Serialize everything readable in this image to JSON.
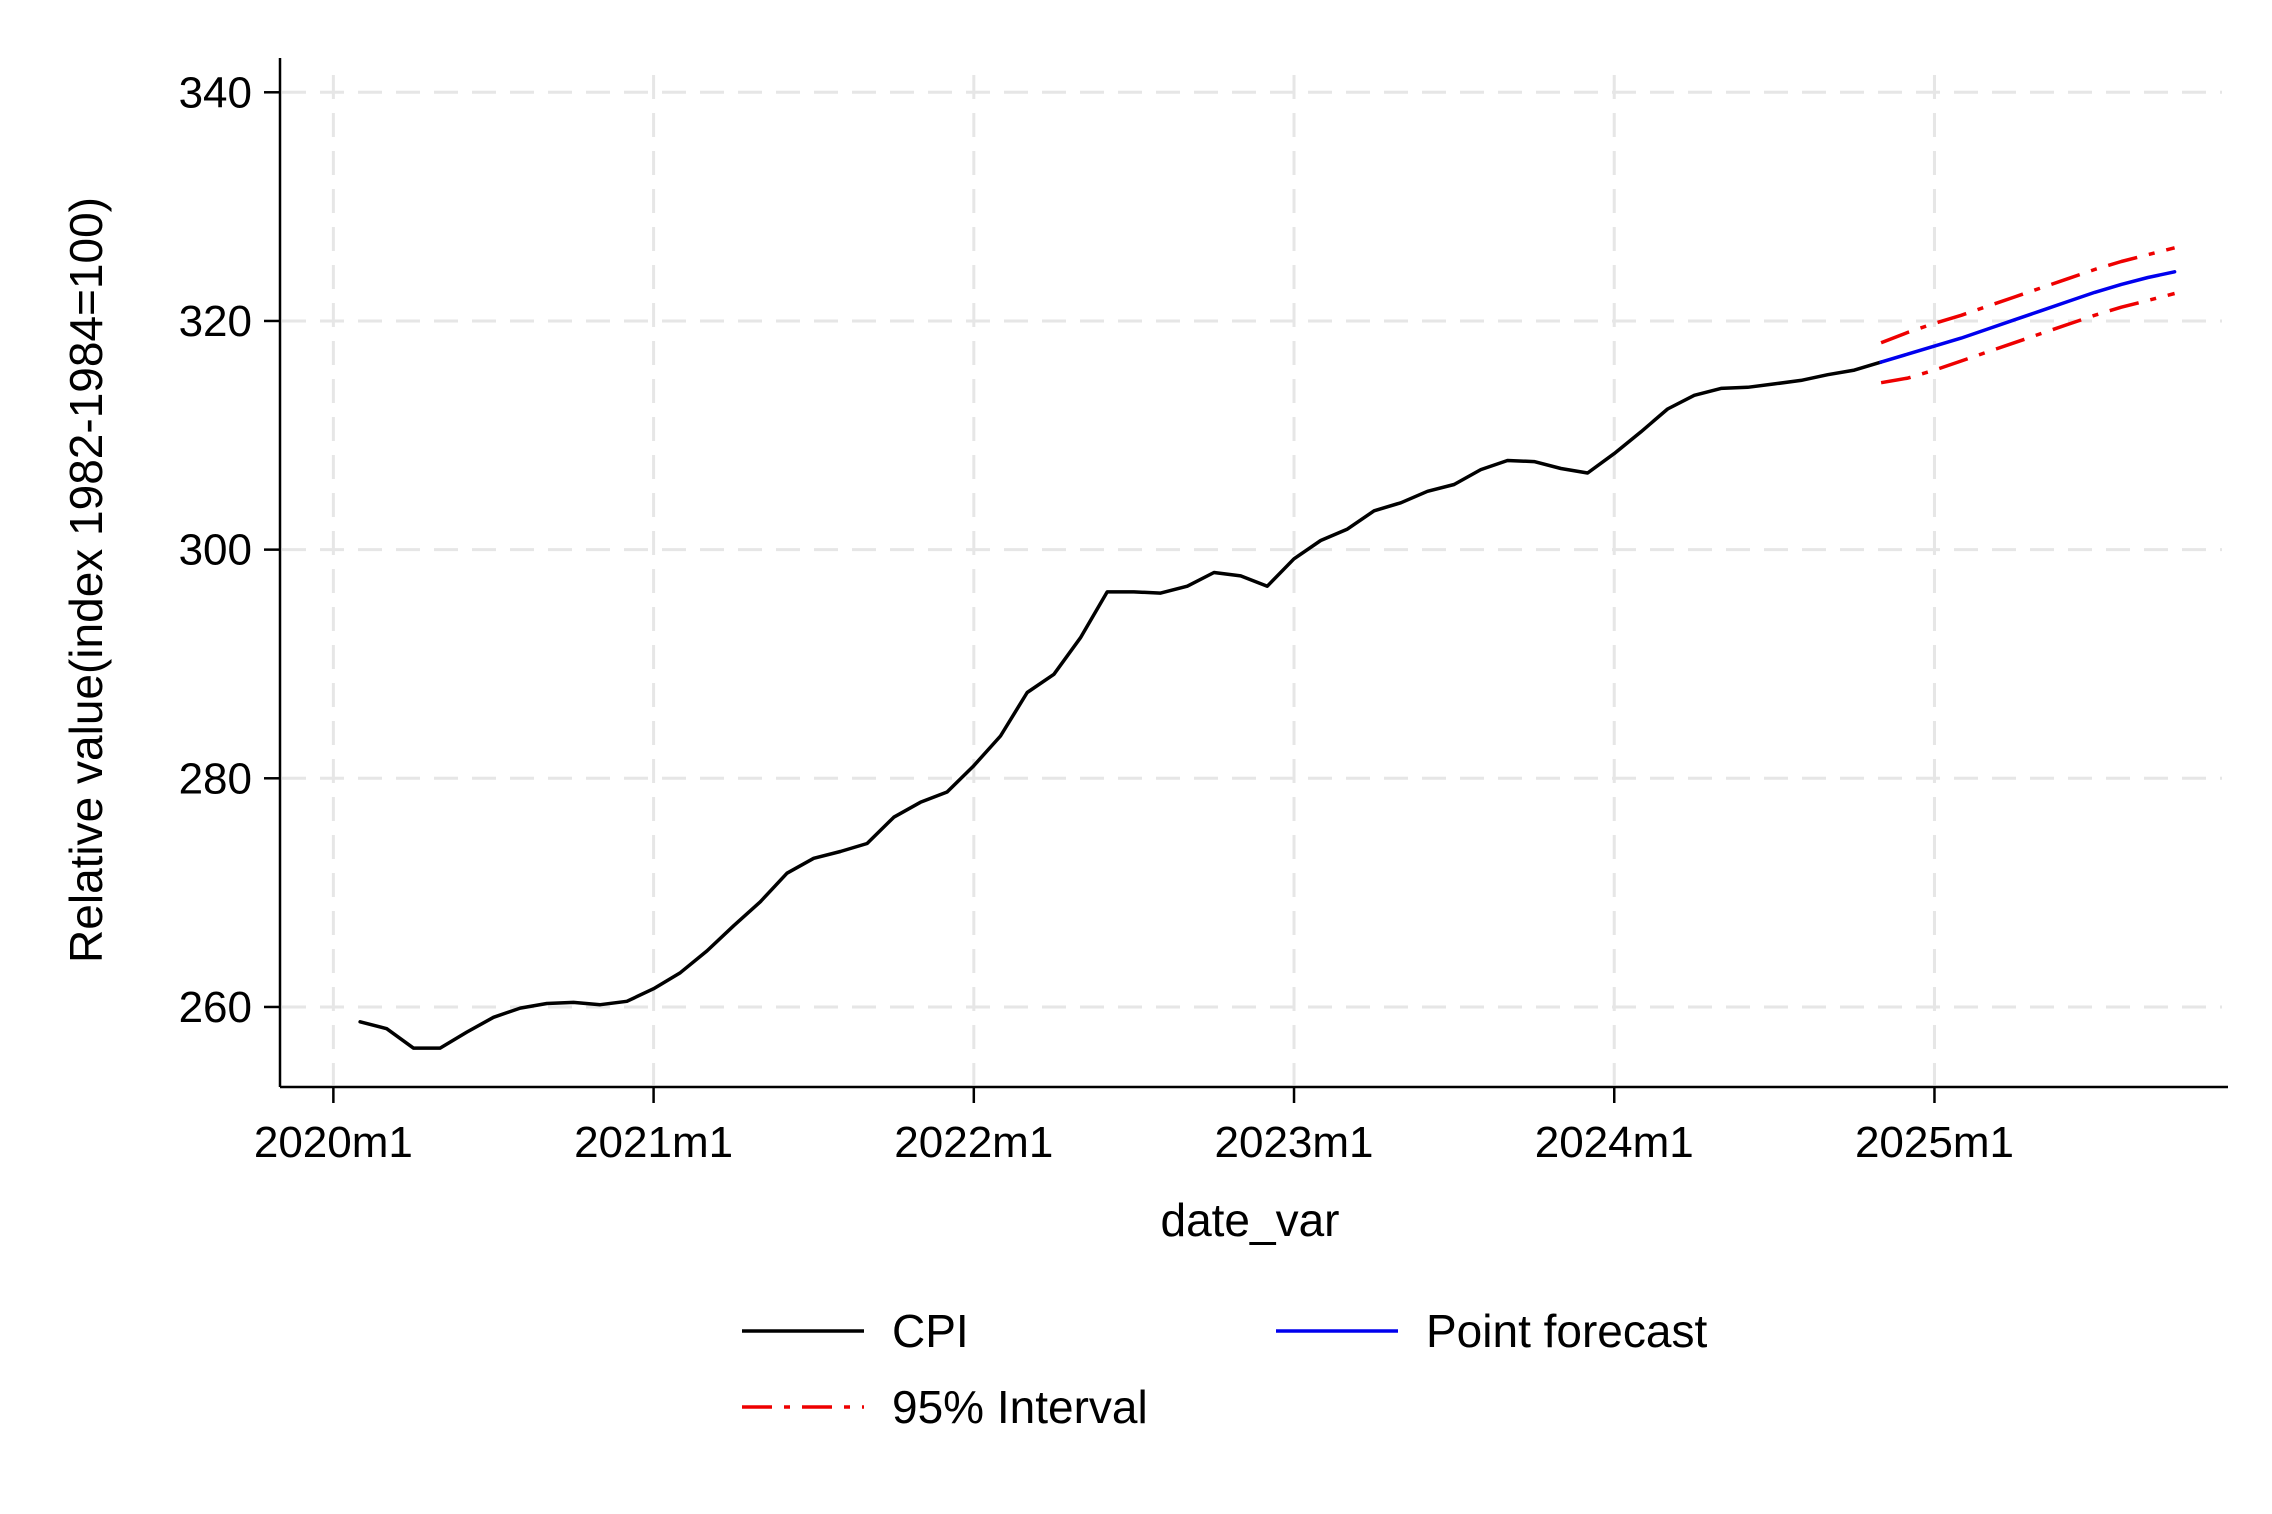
{
  "chart_data": {
    "type": "line",
    "title": "",
    "xlabel": "date_var",
    "ylabel": "Relative value(index 1982-1984=100)",
    "xlim": [
      "2019m11",
      "2025m12"
    ],
    "ylim": [
      253,
      343
    ],
    "x_ticks": [
      "2020m1",
      "2021m1",
      "2022m1",
      "2023m1",
      "2024m1",
      "2025m1"
    ],
    "y_ticks": [
      260,
      280,
      300,
      320,
      340
    ],
    "grid": true,
    "legend_position": "bottom",
    "series": [
      {
        "name": "CPI",
        "color": "#000000",
        "style": "solid",
        "x_start": "2020m2",
        "values": [
          258.7,
          258.1,
          256.4,
          256.4,
          257.8,
          259.1,
          259.9,
          260.3,
          260.4,
          260.2,
          260.5,
          261.6,
          263.0,
          264.9,
          267.1,
          269.2,
          271.7,
          273.0,
          273.6,
          274.3,
          276.6,
          277.9,
          278.8,
          281.1,
          283.7,
          287.5,
          289.1,
          292.3,
          296.3,
          296.3,
          296.2,
          296.8,
          298.0,
          297.7,
          296.8,
          299.2,
          300.8,
          301.8,
          303.4,
          304.1,
          305.1,
          305.7,
          307.0,
          307.8,
          307.7,
          307.1,
          306.7,
          308.4,
          310.3,
          312.3,
          313.5,
          314.1,
          314.2,
          314.5,
          314.8,
          315.3,
          315.7,
          316.4
        ]
      },
      {
        "name": "Point forecast",
        "color": "#0000ee",
        "style": "solid",
        "x_start": "2024m11",
        "values": [
          316.4,
          317.1,
          317.8,
          318.5,
          319.3,
          320.1,
          320.9,
          321.7,
          322.5,
          323.2,
          323.8,
          324.3
        ]
      },
      {
        "name": "95% Interval",
        "color": "#ee0000",
        "style": "dash-dot",
        "x_start": "2024m11",
        "upper": [
          318.1,
          319.0,
          319.8,
          320.5,
          321.3,
          322.1,
          322.9,
          323.7,
          324.5,
          325.2,
          325.8,
          326.4
        ],
        "lower": [
          314.6,
          315.0,
          315.7,
          316.5,
          317.3,
          318.1,
          318.9,
          319.7,
          320.5,
          321.2,
          321.8,
          322.4
        ]
      }
    ]
  }
}
